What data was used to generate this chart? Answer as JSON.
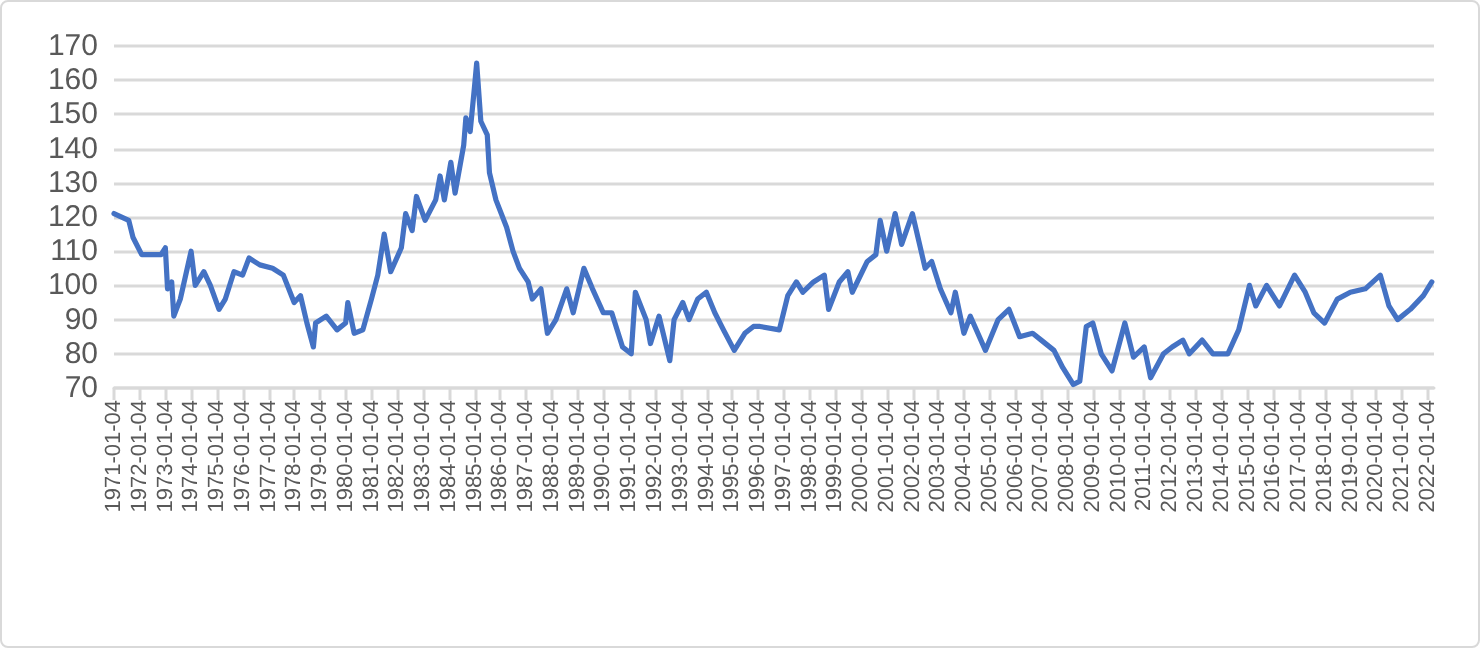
{
  "chart_data": {
    "type": "line",
    "line_style": "solid",
    "marker": "none",
    "grid": "y",
    "x": [
      "1971-01-04",
      "1971-08",
      "1971-10",
      "1972-02",
      "1972-11",
      "1973-01",
      "1973-02",
      "1973-04",
      "1973-05",
      "1973-08",
      "1974-01",
      "1974-03",
      "1974-07",
      "1974-10",
      "1975-02",
      "1975-05",
      "1975-09",
      "1976-01",
      "1976-04",
      "1976-09",
      "1977-03",
      "1977-08",
      "1978-01",
      "1978-04",
      "1978-07",
      "1978-10",
      "1978-11",
      "1979-04",
      "1979-09",
      "1980-01",
      "1980-02",
      "1980-05",
      "1980-09",
      "1981-01",
      "1981-04",
      "1981-07",
      "1981-10",
      "1982-03",
      "1982-05",
      "1982-08",
      "1982-10",
      "1983-02",
      "1983-07",
      "1983-09",
      "1983-11",
      "1984-02",
      "1984-04",
      "1984-08",
      "1984-09",
      "1984-11",
      "1985-01",
      "1985-02",
      "1985-04",
      "1985-07",
      "1985-08",
      "1985-11",
      "1986-04",
      "1986-07",
      "1986-10",
      "1987-02",
      "1987-04",
      "1987-08",
      "1987-11",
      "1988-03",
      "1988-08",
      "1988-11",
      "1989-04",
      "1989-08",
      "1990-01",
      "1990-05",
      "1990-10",
      "1991-02",
      "1991-04",
      "1991-09",
      "1991-11",
      "1992-03",
      "1992-08",
      "1992-10",
      "1993-02",
      "1993-05",
      "1993-09",
      "1994-01",
      "1994-05",
      "1994-09",
      "1995-02",
      "1995-07",
      "1995-11",
      "1996-02",
      "1996-11",
      "1997-03",
      "1997-07",
      "1997-10",
      "1998-03",
      "1998-08",
      "1998-10",
      "1999-03",
      "1999-07",
      "1999-09",
      "2000-04",
      "2000-08",
      "2000-10",
      "2001-01",
      "2001-05",
      "2001-08",
      "2002-01",
      "2002-04",
      "2002-07",
      "2002-10",
      "2003-02",
      "2003-07",
      "2003-09",
      "2004-01",
      "2004-04",
      "2004-11",
      "2005-05",
      "2005-10",
      "2006-03",
      "2006-09",
      "2007-01",
      "2007-07",
      "2007-11",
      "2008-04",
      "2008-07",
      "2008-10",
      "2009-01",
      "2009-05",
      "2009-10",
      "2010-04",
      "2010-08",
      "2011-01",
      "2011-04",
      "2011-10",
      "2012-02",
      "2012-07",
      "2012-10",
      "2013-04",
      "2013-09",
      "2014-04",
      "2014-09",
      "2015-02",
      "2015-05",
      "2015-10",
      "2016-04",
      "2016-11",
      "2017-04",
      "2017-08",
      "2018-01",
      "2018-07",
      "2019-01",
      "2019-08",
      "2020-03",
      "2020-07",
      "2020-11",
      "2021-05",
      "2021-11",
      "2022-03"
    ],
    "series": [
      {
        "color": "#4472c4",
        "values": [
          121,
          119,
          114,
          109,
          109,
          111,
          99,
          101,
          91,
          96,
          110,
          100,
          104,
          100,
          93,
          96,
          104,
          103,
          108,
          106,
          105,
          103,
          95,
          97,
          89,
          82,
          89,
          91,
          87,
          89,
          95,
          86,
          87,
          96,
          103,
          115,
          104,
          111,
          121,
          116,
          126,
          119,
          125,
          132,
          125,
          136,
          127,
          141,
          149,
          145,
          158,
          165,
          148,
          144,
          133,
          125,
          117,
          110,
          105,
          101,
          96,
          99,
          86,
          90,
          99,
          92,
          105,
          99,
          92,
          92,
          82,
          80,
          98,
          90,
          83,
          91,
          78,
          90,
          95,
          90,
          96,
          98,
          92,
          87,
          81,
          86,
          88,
          88,
          87,
          97,
          101,
          98,
          101,
          103,
          93,
          101,
          104,
          98,
          107,
          109,
          119,
          110,
          121,
          112,
          121,
          113,
          105,
          107,
          99,
          92,
          98,
          86,
          91,
          81,
          90,
          93,
          85,
          86,
          84,
          81,
          76,
          71,
          72,
          88,
          89,
          80,
          75,
          89,
          79,
          82,
          73,
          80,
          82,
          84,
          80,
          84,
          80,
          80,
          87,
          100,
          94,
          100,
          94,
          103,
          98,
          92,
          89,
          96,
          98,
          99,
          103,
          94,
          90,
          93,
          97,
          101
        ]
      }
    ],
    "xlim": [
      "1971-01-04",
      "2022-04"
    ],
    "xticks": [
      "1971-01-04",
      "1972-01-04",
      "1973-01-04",
      "1974-01-04",
      "1975-01-04",
      "1976-01-04",
      "1977-01-04",
      "1978-01-04",
      "1979-01-04",
      "1980-01-04",
      "1981-01-04",
      "1982-01-04",
      "1983-01-04",
      "1984-01-04",
      "1985-01-04",
      "1986-01-04",
      "1987-01-04",
      "1988-01-04",
      "1989-01-04",
      "1990-01-04",
      "1991-01-04",
      "1992-01-04",
      "1993-01-04",
      "1994-01-04",
      "1995-01-04",
      "1996-01-04",
      "1997-01-04",
      "1998-01-04",
      "1999-01-04",
      "2000-01-04",
      "2001-01-04",
      "2002-01-04",
      "2003-01-04",
      "2004-01-04",
      "2005-01-04",
      "2006-01-04",
      "2007-01-04",
      "2008-01-04",
      "2009-01-04",
      "2010-01-04",
      "2011-01-04",
      "2012-01-04",
      "2013-01-04",
      "2014-01-04",
      "2015-01-04",
      "2016-01-04",
      "2017-01-04",
      "2018-01-04",
      "2019-01-04",
      "2020-01-04",
      "2021-01-04",
      "2022-01-04"
    ],
    "ylim": [
      70,
      170
    ],
    "yticks": [
      70,
      80,
      90,
      100,
      110,
      120,
      130,
      140,
      150,
      160,
      170
    ]
  }
}
